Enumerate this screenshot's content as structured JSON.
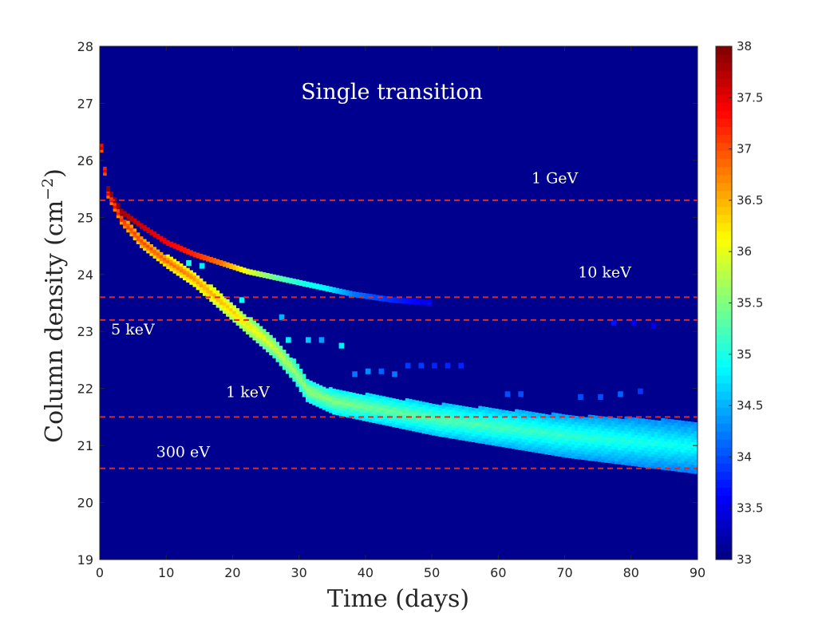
{
  "chart_data": {
    "type": "heatmap",
    "title": "Single transition",
    "xlabel": "Time (days)",
    "ylabel_main": "Column density (cm",
    "ylabel_sup": "−2",
    "ylabel_close": ")",
    "xlim": [
      0,
      90
    ],
    "ylim": [
      19,
      28
    ],
    "xticks": [
      "0",
      "10",
      "20",
      "30",
      "40",
      "50",
      "60",
      "70",
      "80",
      "90"
    ],
    "yticks": [
      "19",
      "20",
      "21",
      "22",
      "23",
      "24",
      "25",
      "26",
      "27",
      "28"
    ],
    "colorbar": {
      "colormap": "jet",
      "range": [
        33,
        38
      ],
      "ticks": [
        "33",
        "33.5",
        "34",
        "34.5",
        "35",
        "35.5",
        "36",
        "36.5",
        "37",
        "37.5",
        "38"
      ]
    },
    "background_value": 33,
    "reference_lines": [
      {
        "label": "1 GeV",
        "y": 25.3,
        "label_x": 65,
        "label_y": 25.6
      },
      {
        "label": "10 keV",
        "y": 23.6,
        "label_x": 72,
        "label_y": 23.95
      },
      {
        "label": "5 keV",
        "y": 23.2,
        "label_x": 1.7,
        "label_y": 22.95
      },
      {
        "label": "1 keV",
        "y": 21.5,
        "label_x": 19,
        "label_y": 21.85
      },
      {
        "label": "300 eV",
        "y": 20.6,
        "label_x": 8.5,
        "label_y": 20.8
      }
    ],
    "reference_line_color": "#e8271e",
    "lower_track": [
      {
        "t": 0,
        "n": 26.2,
        "v": 37.8
      },
      {
        "t": 1,
        "n": 25.4,
        "v": 37.6
      },
      {
        "t": 3,
        "n": 24.95,
        "v": 37.4
      },
      {
        "t": 6,
        "n": 24.55,
        "v": 37.2
      },
      {
        "t": 10,
        "n": 24.2,
        "v": 37.0
      },
      {
        "t": 14,
        "n": 23.9,
        "v": 36.8
      },
      {
        "t": 18,
        "n": 23.5,
        "v": 36.6
      },
      {
        "t": 22,
        "n": 23.1,
        "v": 36.3
      },
      {
        "t": 26,
        "n": 22.7,
        "v": 36.0
      },
      {
        "t": 29,
        "n": 22.3,
        "v": 35.8
      },
      {
        "t": 31,
        "n": 21.95,
        "v": 35.7
      },
      {
        "t": 35,
        "n": 21.75,
        "v": 35.6
      },
      {
        "t": 40,
        "n": 21.65,
        "v": 35.5
      },
      {
        "t": 50,
        "n": 21.45,
        "v": 35.4
      },
      {
        "t": 60,
        "n": 21.3,
        "v": 35.3
      },
      {
        "t": 70,
        "n": 21.15,
        "v": 35.2
      },
      {
        "t": 80,
        "n": 21.05,
        "v": 35.1
      },
      {
        "t": 90,
        "n": 20.95,
        "v": 35.0
      }
    ],
    "upper_track": [
      {
        "t": 1,
        "n": 25.5,
        "v": 37.9
      },
      {
        "t": 3,
        "n": 25.1,
        "v": 37.8
      },
      {
        "t": 6,
        "n": 24.85,
        "v": 37.6
      },
      {
        "t": 10,
        "n": 24.55,
        "v": 37.4
      },
      {
        "t": 14,
        "n": 24.35,
        "v": 37.2
      },
      {
        "t": 18,
        "n": 24.2,
        "v": 36.8
      },
      {
        "t": 22,
        "n": 24.05,
        "v": 36.0
      },
      {
        "t": 26,
        "n": 23.95,
        "v": 35.4
      },
      {
        "t": 30,
        "n": 23.85,
        "v": 35.0
      },
      {
        "t": 34,
        "n": 23.75,
        "v": 34.8
      },
      {
        "t": 38,
        "n": 23.65,
        "v": 34.2
      },
      {
        "t": 44,
        "n": 23.55,
        "v": 33.8
      },
      {
        "t": 50,
        "n": 23.5,
        "v": 33.5
      }
    ],
    "scatter_cells": [
      {
        "t": 13,
        "n": 24.2,
        "v": 35.0
      },
      {
        "t": 15,
        "n": 24.15,
        "v": 34.8
      },
      {
        "t": 21,
        "n": 23.55,
        "v": 34.9
      },
      {
        "t": 27,
        "n": 23.25,
        "v": 34.5
      },
      {
        "t": 28,
        "n": 22.85,
        "v": 34.8
      },
      {
        "t": 31,
        "n": 22.85,
        "v": 34.6
      },
      {
        "t": 33,
        "n": 22.85,
        "v": 34.4
      },
      {
        "t": 36,
        "n": 22.75,
        "v": 34.8
      },
      {
        "t": 38,
        "n": 22.25,
        "v": 34.2
      },
      {
        "t": 40,
        "n": 22.3,
        "v": 34.3
      },
      {
        "t": 42,
        "n": 22.3,
        "v": 34.1
      },
      {
        "t": 44,
        "n": 22.25,
        "v": 34.2
      },
      {
        "t": 46,
        "n": 22.4,
        "v": 33.9
      },
      {
        "t": 48,
        "n": 22.4,
        "v": 33.9
      },
      {
        "t": 50,
        "n": 22.4,
        "v": 33.8
      },
      {
        "t": 52,
        "n": 22.4,
        "v": 33.8
      },
      {
        "t": 54,
        "n": 22.4,
        "v": 33.8
      },
      {
        "t": 61,
        "n": 21.9,
        "v": 34.0
      },
      {
        "t": 63,
        "n": 21.9,
        "v": 34.0
      },
      {
        "t": 72,
        "n": 21.85,
        "v": 34.0
      },
      {
        "t": 75,
        "n": 21.85,
        "v": 34.0
      },
      {
        "t": 78,
        "n": 21.9,
        "v": 34.1
      },
      {
        "t": 81,
        "n": 21.95,
        "v": 33.9
      },
      {
        "t": 77,
        "n": 23.15,
        "v": 33.7
      },
      {
        "t": 80,
        "n": 23.15,
        "v": 33.6
      },
      {
        "t": 83,
        "n": 23.1,
        "v": 33.5
      }
    ]
  }
}
